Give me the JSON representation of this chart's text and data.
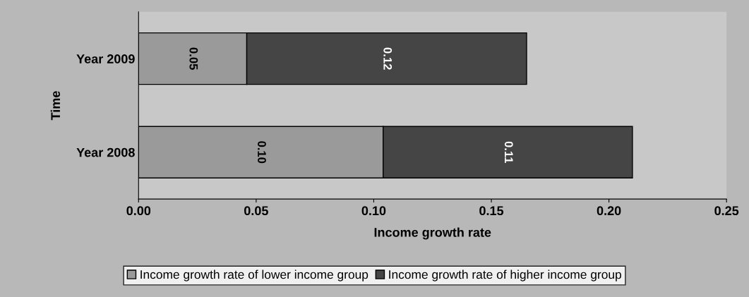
{
  "chart_data": {
    "type": "bar",
    "orientation": "horizontal",
    "stacked": true,
    "xlabel": "Income growth rate",
    "ylabel": "Time",
    "categories": [
      "Year 2009",
      "Year 2008"
    ],
    "series": [
      {
        "name": "Income growth rate of lower income group",
        "color": "#9a9a9a",
        "values": [
          0.046,
          0.104
        ],
        "value_labels": [
          "0.05",
          "0.10"
        ]
      },
      {
        "name": "Income growth rate of higher income group",
        "color": "#454545",
        "values": [
          0.119,
          0.106
        ],
        "value_labels": [
          "0.12",
          "0.11"
        ]
      }
    ],
    "xlim": [
      0,
      0.25
    ],
    "xticks": [
      {
        "value": 0,
        "label": "0.00"
      },
      0.05,
      {
        "value": 0.1,
        "label": "0.10"
      },
      0.15,
      {
        "value": 0.2,
        "label": "0.20"
      },
      0.25
    ],
    "grid": false,
    "legend": "bottom"
  }
}
